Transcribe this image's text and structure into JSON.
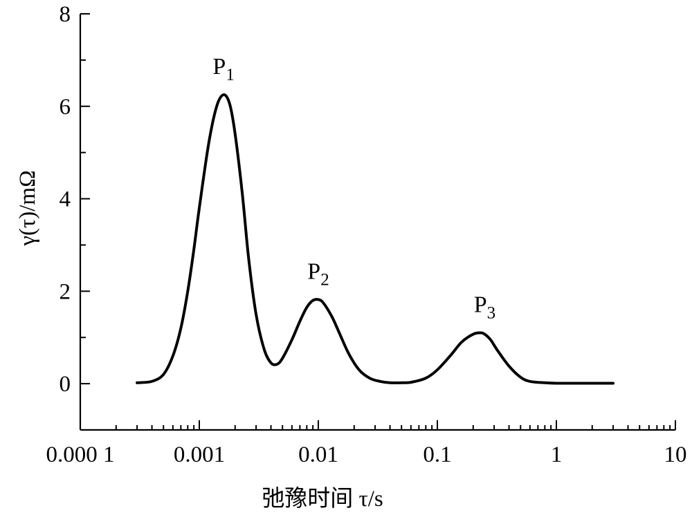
{
  "chart_data": {
    "type": "line",
    "x_scale": "log",
    "xlim": [
      0.0001,
      10
    ],
    "ylim": [
      -1,
      8
    ],
    "xlabel": "弛豫时间 τ/s",
    "ylabel": "γ(τ)/mΩ",
    "x_ticks": [
      {
        "value": 0.0001,
        "label": "0.000 1"
      },
      {
        "value": 0.001,
        "label": "0.001"
      },
      {
        "value": 0.01,
        "label": "0.01"
      },
      {
        "value": 0.1,
        "label": "0.1"
      },
      {
        "value": 1,
        "label": "1"
      },
      {
        "value": 10,
        "label": "10"
      }
    ],
    "y_ticks": [
      {
        "value": 0,
        "label": "0"
      },
      {
        "value": 2,
        "label": "2"
      },
      {
        "value": 4,
        "label": "4"
      },
      {
        "value": 6,
        "label": "6"
      },
      {
        "value": 8,
        "label": "8"
      }
    ],
    "series": [
      {
        "x": [
          0.0003,
          0.0004,
          0.0005,
          0.0006,
          0.0007,
          0.0008,
          0.0009,
          0.001,
          0.0012,
          0.0014,
          0.0016,
          0.0018,
          0.002,
          0.0023,
          0.0026,
          0.003,
          0.0035,
          0.004,
          0.0045,
          0.005,
          0.006,
          0.007,
          0.008,
          0.009,
          0.01,
          0.011,
          0.013,
          0.015,
          0.018,
          0.022,
          0.027,
          0.033,
          0.04,
          0.05,
          0.06,
          0.08,
          0.1,
          0.13,
          0.16,
          0.2,
          0.23,
          0.25,
          0.28,
          0.32,
          0.4,
          0.5,
          0.6,
          0.8,
          1.0,
          1.5,
          2.0,
          3.0
        ],
        "y": [
          0.02,
          0.05,
          0.2,
          0.6,
          1.2,
          2.0,
          2.9,
          3.8,
          5.2,
          6.0,
          6.25,
          6.05,
          5.4,
          4.1,
          2.7,
          1.5,
          0.75,
          0.45,
          0.42,
          0.55,
          0.95,
          1.35,
          1.65,
          1.8,
          1.82,
          1.75,
          1.45,
          1.1,
          0.65,
          0.3,
          0.12,
          0.05,
          0.02,
          0.02,
          0.03,
          0.12,
          0.3,
          0.62,
          0.9,
          1.07,
          1.1,
          1.07,
          0.95,
          0.72,
          0.38,
          0.14,
          0.05,
          0.02,
          0.01,
          0.01,
          0.01,
          0.01
        ]
      }
    ],
    "annotations": [
      {
        "text": "P",
        "sub": "1",
        "x": 0.0016,
        "y": 6.25
      },
      {
        "text": "P",
        "sub": "2",
        "x": 0.01,
        "y": 1.82
      },
      {
        "text": "P",
        "sub": "3",
        "x": 0.25,
        "y": 1.1
      }
    ],
    "grid": false,
    "legend": "none"
  }
}
